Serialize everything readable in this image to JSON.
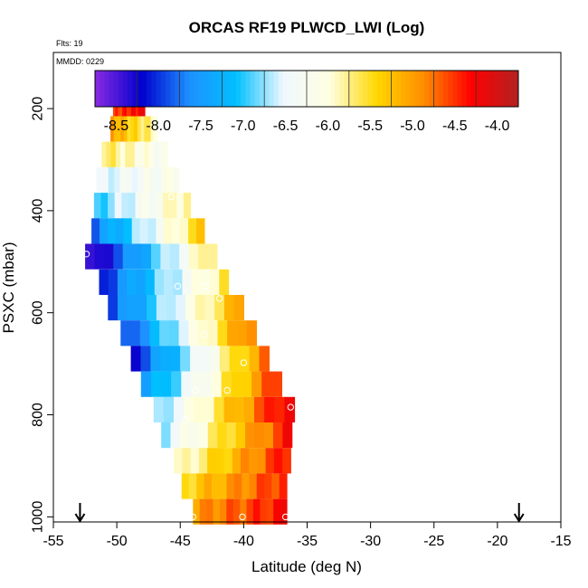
{
  "chart_data": {
    "type": "heatmap",
    "title": "ORCAS RF19 PLWCD_LWI (Log)",
    "annotations": {
      "flights": "Flts: 19",
      "date": "MMDD: 0229"
    },
    "xlabel": "Latitude (deg N)",
    "ylabel": "PSXC (mbar)",
    "xlim": [
      -55,
      -15
    ],
    "ylim": [
      1010,
      90
    ],
    "x_ticks": [
      -55,
      -50,
      -45,
      -40,
      -35,
      -30,
      -25,
      -20,
      -15
    ],
    "x_tick_labels": [
      "-55",
      "-50",
      "-45",
      "-40",
      "-35",
      "-30",
      "-25",
      "-20",
      "-15"
    ],
    "y_ticks": [
      200,
      400,
      600,
      800,
      1000
    ],
    "y_tick_labels": [
      "200",
      "400",
      "600",
      "800",
      "1000"
    ],
    "colorbar": {
      "range": [
        -8.75,
        -3.75
      ],
      "ticks": [
        -8.5,
        -8.0,
        -7.5,
        -7.0,
        -6.5,
        -6.0,
        -5.5,
        -5.0,
        -4.5,
        -4.0
      ],
      "tick_labels": [
        "-8.5",
        "-8.0",
        "-7.5",
        "-7.0",
        "-6.5",
        "-6.0",
        "-5.5",
        "-5.0",
        "-4.5",
        "-4.0"
      ],
      "colors": [
        "#8a2be2",
        "#0000cd",
        "#1e90ff",
        "#00bfff",
        "#f0f8ff",
        "#ffffe0",
        "#ffd700",
        "#ff8c00",
        "#ff0000",
        "#b22222"
      ]
    },
    "flight_markers": [
      -52.9,
      -18.3
    ],
    "rows": [
      {
        "p": 190,
        "lat0": -50.3,
        "lat1": -47.8,
        "v0": -4.6,
        "v1": -4.2
      },
      {
        "p": 240,
        "lat0": -50.5,
        "lat1": -46.8,
        "v0": -5.0,
        "v1": -5.9
      },
      {
        "p": 290,
        "lat0": -51.2,
        "lat1": -46.0,
        "v0": -5.6,
        "v1": -6.3
      },
      {
        "p": 340,
        "lat0": -51.6,
        "lat1": -45.1,
        "v0": -6.6,
        "v1": -6.1
      },
      {
        "p": 390,
        "lat0": -51.8,
        "lat1": -44.2,
        "v0": -7.0,
        "v1": -5.7
      },
      {
        "p": 440,
        "lat0": -52.0,
        "lat1": -43.1,
        "v0": -7.8,
        "v1": -5.3
      },
      {
        "p": 490,
        "lat0": -52.5,
        "lat1": -42.1,
        "v0": -8.7,
        "v1": -5.5
      },
      {
        "p": 540,
        "lat0": -51.4,
        "lat1": -41.2,
        "v0": -8.1,
        "v1": -5.5
      },
      {
        "p": 590,
        "lat0": -50.7,
        "lat1": -40.0,
        "v0": -8.0,
        "v1": -5.0
      },
      {
        "p": 640,
        "lat0": -49.7,
        "lat1": -39.0,
        "v0": -8.1,
        "v1": -4.6
      },
      {
        "p": 690,
        "lat0": -48.9,
        "lat1": -38.0,
        "v0": -8.2,
        "v1": -4.7
      },
      {
        "p": 740,
        "lat0": -48.1,
        "lat1": -37.0,
        "v0": -7.6,
        "v1": -4.4
      },
      {
        "p": 790,
        "lat0": -47.1,
        "lat1": -36.0,
        "v0": -6.9,
        "v1": -4.0
      },
      {
        "p": 840,
        "lat0": -46.5,
        "lat1": -36.2,
        "v0": -6.7,
        "v1": -4.3
      },
      {
        "p": 890,
        "lat0": -45.5,
        "lat1": -36.3,
        "v0": -6.1,
        "v1": -4.3
      },
      {
        "p": 940,
        "lat0": -44.9,
        "lat1": -36.6,
        "v0": -5.5,
        "v1": -4.4
      },
      {
        "p": 990,
        "lat0": -44.0,
        "lat1": -36.6,
        "v0": -5.0,
        "v1": -4.3
      }
    ],
    "points": [
      {
        "lat": -50.4,
        "p": 190
      },
      {
        "lat": -48.0,
        "p": 190
      },
      {
        "lat": -45.7,
        "p": 373
      },
      {
        "lat": -52.4,
        "p": 485
      },
      {
        "lat": -45.2,
        "p": 548
      },
      {
        "lat": -43.0,
        "p": 548
      },
      {
        "lat": -41.9,
        "p": 572
      },
      {
        "lat": -43.1,
        "p": 643
      },
      {
        "lat": -40.0,
        "p": 698
      },
      {
        "lat": -43.8,
        "p": 752
      },
      {
        "lat": -41.3,
        "p": 752
      },
      {
        "lat": -44.6,
        "p": 810
      },
      {
        "lat": -36.3,
        "p": 785
      },
      {
        "lat": -44.0,
        "p": 1000
      },
      {
        "lat": -40.1,
        "p": 1000
      },
      {
        "lat": -36.7,
        "p": 1000
      }
    ]
  }
}
